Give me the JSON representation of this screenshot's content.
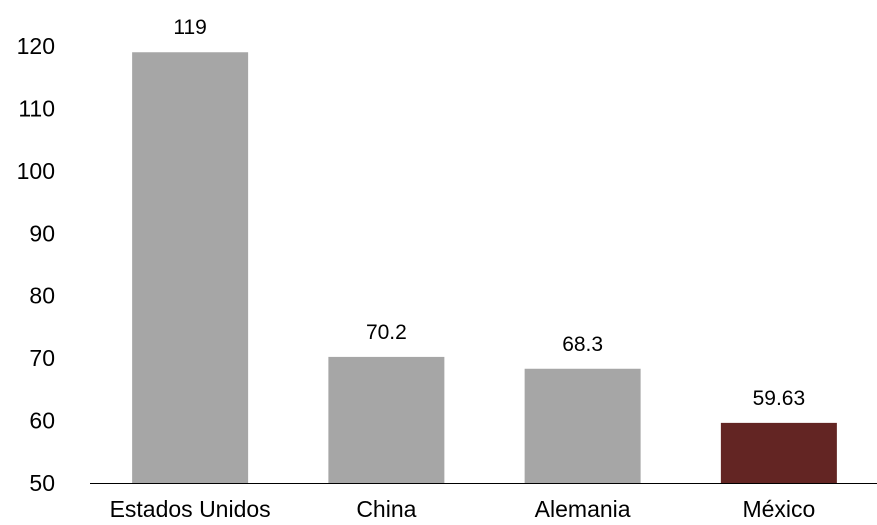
{
  "chart_data": {
    "type": "bar",
    "categories": [
      "Estados Unidos",
      "China",
      "Alemania",
      "México"
    ],
    "values": [
      119,
      70.2,
      68.3,
      59.63
    ],
    "data_labels": [
      "119",
      "70.2",
      "68.3",
      "59.63"
    ],
    "ylim": [
      50,
      120
    ],
    "yticks": [
      "50",
      "60",
      "70",
      "80",
      "90",
      "100",
      "110",
      "120"
    ],
    "ytick_values": [
      50,
      60,
      70,
      80,
      90,
      100,
      110,
      120
    ],
    "grid": false,
    "colors": {
      "default_bar": "#a6a6a6",
      "highlight_bar": "#632523",
      "axis": "#000000"
    },
    "highlight_index": 3
  }
}
